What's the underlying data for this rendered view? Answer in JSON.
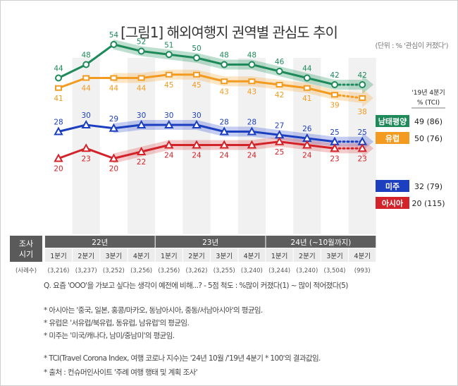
{
  "title": "[그림1] 해외여행지 권역별 관심도 추이",
  "unit_note": "(단위 : % '관심이 커졌다')",
  "chart_data": {
    "type": "line",
    "title": "[그림1] 해외여행지 권역별 관심도 추이",
    "x_groups": [
      {
        "label": "22년",
        "span": 4
      },
      {
        "label": "23년",
        "span": 4
      },
      {
        "label": "24년 (~10월까지)",
        "span": 4
      }
    ],
    "categories": [
      "1분기",
      "2분기",
      "3분기",
      "4분기",
      "1분기",
      "2분기",
      "3분기",
      "4분기",
      "1분기",
      "2분기",
      "3분기",
      "4분기"
    ],
    "sample_sizes": [
      "(3,216)",
      "(3,237)",
      "(3,252)",
      "(3,256)",
      "(3,256)",
      "(3,262)",
      "(3,255)",
      "(3,240)",
      "(3,244)",
      "(3,240)",
      "(3,504)",
      "(993)"
    ],
    "row_header_period": "조사 시기",
    "row_header_period_line1": "조사",
    "row_header_period_line2": "시기",
    "row_header_sample": "(사례수)",
    "tci_header_line1": "'19년 4분기",
    "tci_header_line2": "% (TCI)",
    "series": [
      {
        "name": "남태평양",
        "color": "#1e8a5a",
        "band": "#2f9a6b",
        "values": [
          44,
          48,
          54,
          52,
          51,
          50,
          48,
          48,
          46,
          44,
          42,
          42
        ],
        "tci_label": "49 (86)"
      },
      {
        "name": "유럽",
        "color": "#f29b20",
        "band": "#f6b04a",
        "values": [
          41,
          44,
          44,
          44,
          45,
          45,
          43,
          43,
          42,
          41,
          39,
          38
        ],
        "tci_label": "50 (76)"
      },
      {
        "name": "미주",
        "color": "#1b3fbf",
        "band": "#4a67d6",
        "values": [
          28,
          30,
          29,
          30,
          30,
          30,
          28,
          28,
          27,
          26,
          25,
          25
        ],
        "tci_label": "32 (79)"
      },
      {
        "name": "아시아",
        "color": "#d3232a",
        "band": "#e06060",
        "values": [
          20,
          23,
          20,
          22,
          24,
          24,
          24,
          24,
          25,
          24,
          23,
          23
        ],
        "tci_label": "20 (115)"
      }
    ]
  },
  "notes": [
    "Q. 요즘 'OOO'을 가보고 싶다는 생각이 예전에 비해...? - 5점 척도 : %많이 커졌다(1) ~ 많이 적어졌다(5)",
    "* 아시아는 '중국, 일본, 홍콩/마카오, 동남아시아, 중동/서남아시아'의 평균임.",
    "* 유럽은 '서유럽/북유럽, 동유럽, 남유럽'의 평균임.",
    "* 미주는 '미국/캐나다, 남미/중남미'의 평균임.",
    "* TCI(Travel Corona Index, 여행 코로나 지수)는 '24년 10월 /'19년 4분기 * 100'의 결과값임.",
    "* 출처 : 컨슈머인사이트 '주례 여행 행태 및 계획 조사'"
  ]
}
